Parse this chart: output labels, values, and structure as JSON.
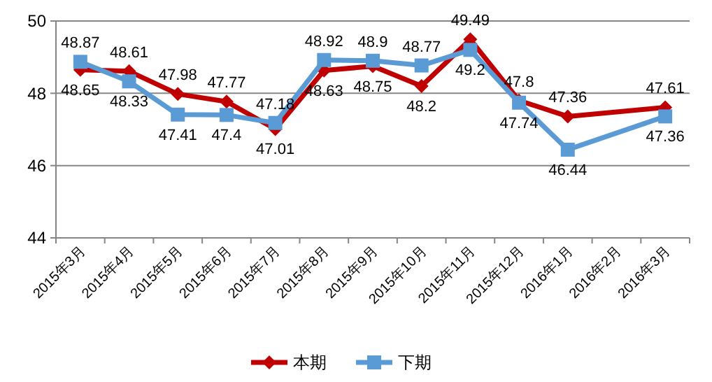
{
  "chart_data": {
    "type": "line",
    "categories": [
      "2015年3月",
      "2015年4月",
      "2015年5月",
      "2015年6月",
      "2015年7月",
      "2015年8月",
      "2015年9月",
      "2015年10月",
      "2015年11月",
      "2015年12月",
      "2016年1月",
      "2016年2月",
      "2016年3月"
    ],
    "series": [
      {
        "name": "本期",
        "color": "#c00000",
        "marker": "diamond",
        "values": [
          48.65,
          48.61,
          47.98,
          47.77,
          47.01,
          48.63,
          48.75,
          48.2,
          49.49,
          47.8,
          47.36,
          null,
          47.61
        ]
      },
      {
        "name": "下期",
        "color": "#5b9bd5",
        "marker": "square",
        "values": [
          48.87,
          48.33,
          47.41,
          47.4,
          47.18,
          48.92,
          48.9,
          48.77,
          49.2,
          47.74,
          46.44,
          null,
          47.36
        ]
      }
    ],
    "ylim": [
      44,
      50
    ],
    "yticks": [
      44,
      46,
      48,
      50
    ],
    "grid": "y",
    "legend": "bottom",
    "data_labels": true
  }
}
